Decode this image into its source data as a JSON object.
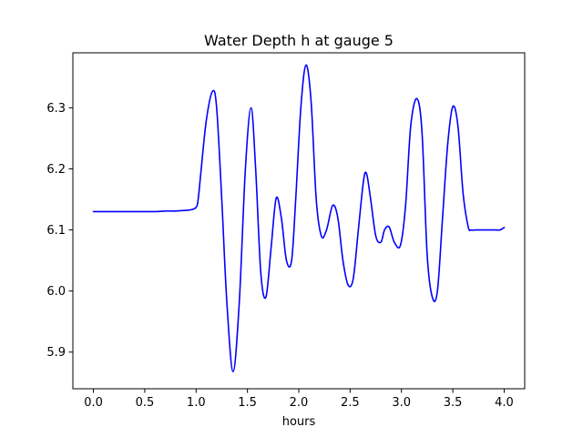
{
  "chart_data": {
    "type": "line",
    "title": "Water Depth h at gauge 5",
    "xlabel": "hours",
    "ylabel": "",
    "xlim": [
      -0.2,
      4.2
    ],
    "ylim": [
      5.84,
      6.39
    ],
    "xticks": [
      {
        "value": 0.0,
        "label": "0.0"
      },
      {
        "value": 0.5,
        "label": "0.5"
      },
      {
        "value": 1.0,
        "label": "1.0"
      },
      {
        "value": 1.5,
        "label": "1.5"
      },
      {
        "value": 2.0,
        "label": "2.0"
      },
      {
        "value": 2.5,
        "label": "2.5"
      },
      {
        "value": 3.0,
        "label": "3.0"
      },
      {
        "value": 3.5,
        "label": "3.5"
      },
      {
        "value": 4.0,
        "label": "4.0"
      }
    ],
    "yticks": [
      {
        "value": 5.9,
        "label": "5.9"
      },
      {
        "value": 6.0,
        "label": "6.0"
      },
      {
        "value": 6.1,
        "label": "6.1"
      },
      {
        "value": 6.2,
        "label": "6.2"
      },
      {
        "value": 6.3,
        "label": "6.3"
      }
    ],
    "grid": false,
    "legend": "none",
    "series": [
      {
        "color": "#0000ff",
        "x": [
          0.0,
          0.2,
          0.4,
          0.6,
          0.7,
          0.8,
          0.9,
          0.95,
          1.0,
          1.02,
          1.05,
          1.1,
          1.16,
          1.2,
          1.25,
          1.3,
          1.36,
          1.42,
          1.48,
          1.535,
          1.58,
          1.63,
          1.68,
          1.73,
          1.78,
          1.83,
          1.88,
          1.93,
          1.97,
          2.02,
          2.07,
          2.12,
          2.17,
          2.22,
          2.27,
          2.33,
          2.38,
          2.43,
          2.48,
          2.53,
          2.58,
          2.63,
          2.66,
          2.7,
          2.75,
          2.8,
          2.835,
          2.88,
          2.93,
          2.99,
          3.04,
          3.09,
          3.15,
          3.2,
          3.25,
          3.3,
          3.35,
          3.4,
          3.45,
          3.5,
          3.55,
          3.6,
          3.65,
          3.68,
          3.72,
          3.77,
          3.8,
          3.835,
          3.88,
          3.92,
          3.96,
          4.0
        ],
        "y": [
          6.13,
          6.13,
          6.13,
          6.13,
          6.131,
          6.131,
          6.132,
          6.133,
          6.137,
          6.15,
          6.2,
          6.28,
          6.327,
          6.3,
          6.15,
          5.98,
          5.868,
          5.98,
          6.2,
          6.3,
          6.2,
          6.03,
          5.99,
          6.07,
          6.152,
          6.12,
          6.05,
          6.05,
          6.15,
          6.3,
          6.37,
          6.31,
          6.15,
          6.09,
          6.1,
          6.14,
          6.12,
          6.05,
          6.01,
          6.02,
          6.1,
          6.18,
          6.192,
          6.15,
          6.09,
          6.08,
          6.1,
          6.105,
          6.08,
          6.075,
          6.14,
          6.27,
          6.315,
          6.26,
          6.06,
          5.99,
          6.0,
          6.12,
          6.24,
          6.302,
          6.27,
          6.16,
          6.105,
          6.1,
          6.1,
          6.1,
          6.1,
          6.1,
          6.1,
          6.1,
          6.1,
          6.104
        ]
      }
    ]
  }
}
